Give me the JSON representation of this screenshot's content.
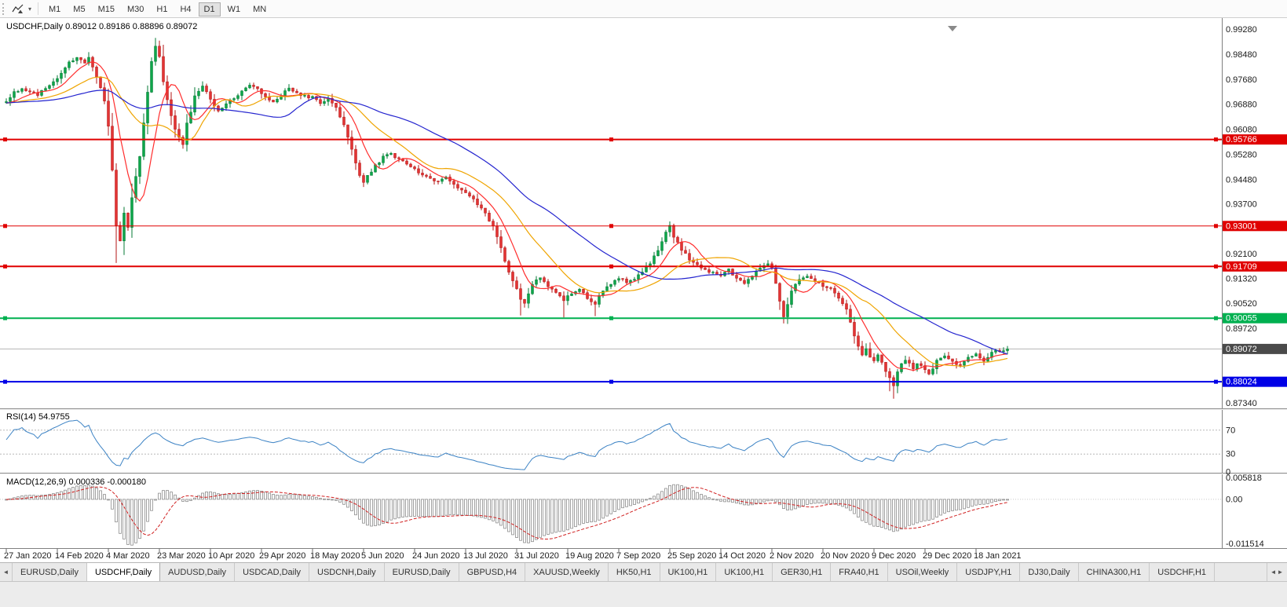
{
  "toolbar": {
    "timeframes": [
      "M1",
      "M5",
      "M15",
      "M30",
      "H1",
      "H4",
      "D1",
      "W1",
      "MN"
    ],
    "active_timeframe": "D1"
  },
  "chart": {
    "title": "USDCHF,Daily 0.89012 0.89186 0.88896 0.89072",
    "symbol": "USDCHF",
    "period": "Daily",
    "open": "0.89012",
    "high": "0.89186",
    "low": "0.88896",
    "close": "0.89072",
    "price_axis_ticks": [
      "0.99280",
      "0.98480",
      "0.97680",
      "0.96880",
      "0.96080",
      "0.95280",
      "0.94480",
      "0.93700",
      "0.92100",
      "0.91320",
      "0.90520",
      "0.89720",
      "0.87340"
    ],
    "current_price": {
      "label": "0.89072",
      "value": 0.89072,
      "badge_color": "#4a4a4a",
      "line_color": "#b4b4b4"
    },
    "levels": [
      {
        "label": "0.95766",
        "value": 0.95766,
        "color": "#e00000",
        "width": 2
      },
      {
        "label": "0.93001",
        "value": 0.93001,
        "color": "#e00000",
        "width": 1
      },
      {
        "label": "0.91709",
        "value": 0.91709,
        "color": "#e00000",
        "width": 2
      },
      {
        "label": "0.90055",
        "value": 0.90055,
        "color": "#00b050",
        "width": 2
      },
      {
        "label": "0.88024",
        "value": 0.88024,
        "color": "#0000e6",
        "width": 2
      }
    ],
    "date_axis": [
      "27 Jan 2020",
      "14 Feb 2020",
      "4 Mar 2020",
      "23 Mar 2020",
      "10 Apr 2020",
      "29 Apr 2020",
      "18 May 2020",
      "5 Jun 2020",
      "24 Jun 2020",
      "13 Jul 2020",
      "31 Jul 2020",
      "19 Aug 2020",
      "7 Sep 2020",
      "25 Sep 2020",
      "14 Oct 2020",
      "2 Nov 2020",
      "20 Nov 2020",
      "9 Dec 2020",
      "29 Dec 2020",
      "18 Jan 2021"
    ]
  },
  "chart_data": {
    "type": "candlestick",
    "symbol": "USDCHF",
    "timeframe": "Daily",
    "visible_price_top": 0.9962,
    "visible_price_bottom": 0.872,
    "num_candles": 256,
    "up_color": "#0ea64a",
    "up_border": "#067a36",
    "down_color": "#e23434",
    "down_border": "#b31515",
    "moving_averages": [
      {
        "period": 8,
        "color": "#ff2d2d"
      },
      {
        "period": 21,
        "color": "#efa400"
      },
      {
        "period": 45,
        "color": "#2424cf"
      }
    ],
    "close_path_anchors": [
      [
        0,
        0.97
      ],
      [
        2,
        0.9726
      ],
      [
        4,
        0.974
      ],
      [
        6,
        0.973
      ],
      [
        8,
        0.9718
      ],
      [
        10,
        0.9742
      ],
      [
        12,
        0.976
      ],
      [
        14,
        0.9788
      ],
      [
        16,
        0.982
      ],
      [
        18,
        0.984
      ],
      [
        20,
        0.9818
      ],
      [
        21,
        0.9842
      ],
      [
        23,
        0.978
      ],
      [
        25,
        0.97
      ],
      [
        26,
        0.962
      ],
      [
        27,
        0.948
      ],
      [
        28,
        0.93
      ],
      [
        29,
        0.9255
      ],
      [
        30,
        0.9345
      ],
      [
        31,
        0.9298
      ],
      [
        32,
        0.939
      ],
      [
        33,
        0.9455
      ],
      [
        34,
        0.952
      ],
      [
        35,
        0.9625
      ],
      [
        36,
        0.9725
      ],
      [
        37,
        0.983
      ],
      [
        38,
        0.9878
      ],
      [
        39,
        0.9838
      ],
      [
        40,
        0.9762
      ],
      [
        41,
        0.97
      ],
      [
        42,
        0.9652
      ],
      [
        43,
        0.961
      ],
      [
        44,
        0.9582
      ],
      [
        45,
        0.956
      ],
      [
        46,
        0.9628
      ],
      [
        47,
        0.9662
      ],
      [
        48,
        0.9712
      ],
      [
        50,
        0.9748
      ],
      [
        52,
        0.9702
      ],
      [
        54,
        0.9668
      ],
      [
        56,
        0.9692
      ],
      [
        58,
        0.971
      ],
      [
        60,
        0.9732
      ],
      [
        62,
        0.9748
      ],
      [
        64,
        0.9742
      ],
      [
        66,
        0.9712
      ],
      [
        68,
        0.9692
      ],
      [
        70,
        0.9718
      ],
      [
        72,
        0.974
      ],
      [
        74,
        0.9726
      ],
      [
        76,
        0.9714
      ],
      [
        78,
        0.9712
      ],
      [
        80,
        0.9692
      ],
      [
        82,
        0.9706
      ],
      [
        84,
        0.9682
      ],
      [
        86,
        0.9622
      ],
      [
        88,
        0.9542
      ],
      [
        90,
        0.9465
      ],
      [
        91,
        0.9442
      ],
      [
        92,
        0.9458
      ],
      [
        94,
        0.9492
      ],
      [
        96,
        0.952
      ],
      [
        98,
        0.953
      ],
      [
        100,
        0.9512
      ],
      [
        102,
        0.95
      ],
      [
        104,
        0.948
      ],
      [
        106,
        0.9465
      ],
      [
        108,
        0.9452
      ],
      [
        110,
        0.944
      ],
      [
        112,
        0.9455
      ],
      [
        114,
        0.9432
      ],
      [
        116,
        0.9415
      ],
      [
        118,
        0.9398
      ],
      [
        120,
        0.9372
      ],
      [
        122,
        0.934
      ],
      [
        124,
        0.9298
      ],
      [
        126,
        0.923
      ],
      [
        128,
        0.915
      ],
      [
        130,
        0.9098
      ],
      [
        131,
        0.9065
      ],
      [
        132,
        0.9055
      ],
      [
        134,
        0.9112
      ],
      [
        136,
        0.9138
      ],
      [
        138,
        0.911
      ],
      [
        140,
        0.909
      ],
      [
        142,
        0.9062
      ],
      [
        144,
        0.9085
      ],
      [
        146,
        0.91
      ],
      [
        148,
        0.9068
      ],
      [
        150,
        0.9052
      ],
      [
        152,
        0.9095
      ],
      [
        154,
        0.9118
      ],
      [
        156,
        0.9135
      ],
      [
        158,
        0.912
      ],
      [
        160,
        0.913
      ],
      [
        162,
        0.9155
      ],
      [
        164,
        0.9182
      ],
      [
        166,
        0.9225
      ],
      [
        168,
        0.9278
      ],
      [
        169,
        0.9298
      ],
      [
        170,
        0.9268
      ],
      [
        172,
        0.9225
      ],
      [
        174,
        0.9192
      ],
      [
        176,
        0.9172
      ],
      [
        178,
        0.9158
      ],
      [
        180,
        0.915
      ],
      [
        182,
        0.9142
      ],
      [
        184,
        0.9162
      ],
      [
        186,
        0.9132
      ],
      [
        188,
        0.912
      ],
      [
        190,
        0.9142
      ],
      [
        192,
        0.9162
      ],
      [
        194,
        0.918
      ],
      [
        195,
        0.9168
      ],
      [
        196,
        0.9118
      ],
      [
        197,
        0.9058
      ],
      [
        198,
        0.9012
      ],
      [
        199,
        0.9048
      ],
      [
        200,
        0.9092
      ],
      [
        202,
        0.9128
      ],
      [
        204,
        0.914
      ],
      [
        206,
        0.9122
      ],
      [
        208,
        0.9108
      ],
      [
        210,
        0.9098
      ],
      [
        212,
        0.9072
      ],
      [
        214,
        0.903
      ],
      [
        215,
        0.8995
      ],
      [
        216,
        0.895
      ],
      [
        217,
        0.8915
      ],
      [
        218,
        0.889
      ],
      [
        219,
        0.8908
      ],
      [
        220,
        0.8882
      ],
      [
        221,
        0.8872
      ],
      [
        222,
        0.8892
      ],
      [
        223,
        0.8862
      ],
      [
        224,
        0.8832
      ],
      [
        225,
        0.8812
      ],
      [
        226,
        0.8792
      ],
      [
        227,
        0.883
      ],
      [
        228,
        0.886
      ],
      [
        229,
        0.8875
      ],
      [
        230,
        0.886
      ],
      [
        231,
        0.8845
      ],
      [
        232,
        0.886
      ],
      [
        233,
        0.8852
      ],
      [
        234,
        0.8845
      ],
      [
        235,
        0.8825
      ],
      [
        236,
        0.8848
      ],
      [
        237,
        0.887
      ],
      [
        239,
        0.8888
      ],
      [
        241,
        0.8868
      ],
      [
        243,
        0.8852
      ],
      [
        245,
        0.8882
      ],
      [
        247,
        0.8892
      ],
      [
        249,
        0.887
      ],
      [
        251,
        0.8895
      ],
      [
        253,
        0.8902
      ],
      [
        255,
        0.8907
      ]
    ],
    "wick_overrides": {
      "28": {
        "low": 0.9182
      },
      "38": {
        "high": 0.9901
      },
      "131": {
        "low": 0.9014
      },
      "142": {
        "low": 0.9008
      },
      "150": {
        "low": 0.9012
      },
      "169": {
        "high": 0.9312
      },
      "198": {
        "low": 0.8998
      },
      "225": {
        "low": 0.8772
      },
      "226": {
        "low": 0.8748
      }
    }
  },
  "rsi": {
    "label": "RSI(14) 54.9755",
    "value": "54.9755",
    "period": 14,
    "color": "#3b82c4",
    "axis_labels": [
      {
        "label": "70",
        "value": 70
      },
      {
        "label": "30",
        "value": 30
      },
      {
        "label": "0",
        "value": 0
      }
    ]
  },
  "macd": {
    "label": "MACD(12,26,9) 0.000336 -0.000180",
    "fast": 12,
    "slow": 26,
    "signal": 9,
    "axis_max": {
      "label": "0.005818",
      "value": 0.005818
    },
    "axis_zero": {
      "label": "0.00",
      "value": 0
    },
    "axis_min": {
      "label": "-0.011514",
      "value": -0.011514
    },
    "histogram_color": "#8c8c8c",
    "signal_color": "#d02020"
  },
  "tabs": {
    "active_index": 1,
    "scroll_left_icon": "◄",
    "scroll_right_icons": "◄►",
    "items": [
      "EURUSD,Daily",
      "USDCHF,Daily",
      "AUDUSD,Daily",
      "USDCAD,Daily",
      "USDCNH,Daily",
      "EURUSD,Daily",
      "GBPUSD,H4",
      "XAUUSD,Weekly",
      "HK50,H1",
      "UK100,H1",
      "UK100,H1",
      "GER30,H1",
      "FRA40,H1",
      "USOil,Weekly",
      "USDJPY,H1",
      "DJ30,Daily",
      "CHINA300,H1",
      "USDCHF,H1"
    ]
  }
}
